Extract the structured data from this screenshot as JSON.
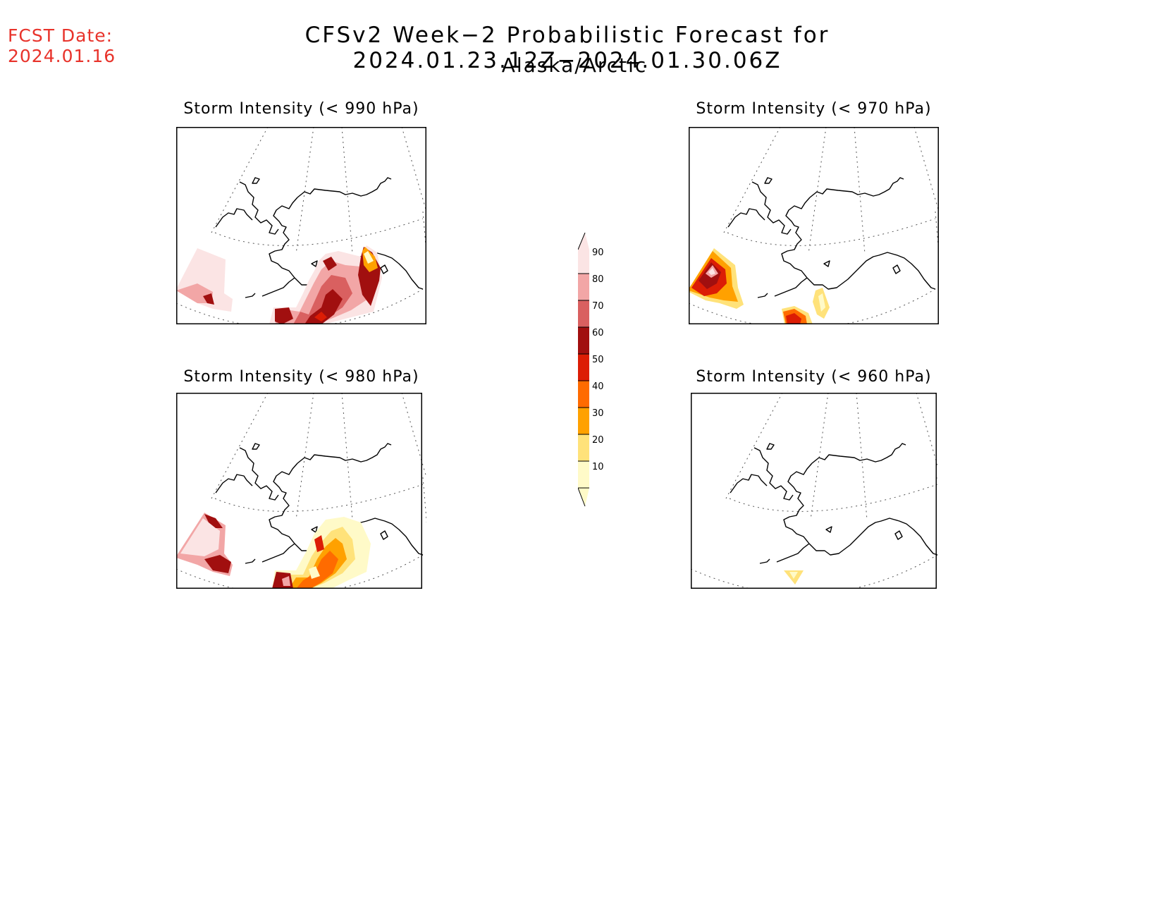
{
  "header": {
    "fcst_label": "FCST Date:",
    "fcst_date": "2024.01.16",
    "title": "CFSv2 Week−2 Probabilistic Forecast for 2024.01.23.12Z−2024.01.30.06Z",
    "region": "Alaska/Arctic"
  },
  "panels": [
    {
      "title": "Storm Intensity (< 990 hPa)"
    },
    {
      "title": "Storm Intensity (< 970 hPa)"
    },
    {
      "title": "Storm Intensity (< 980 hPa)"
    },
    {
      "title": "Storm Intensity (< 960 hPa)"
    }
  ],
  "colorbar": {
    "levels": [
      "90",
      "80",
      "70",
      "60",
      "50",
      "40",
      "30",
      "20",
      "10"
    ],
    "colors": {
      "c90": "#fbe4e4",
      "c80": "#f2a6a6",
      "c70": "#d96060",
      "c60": "#a10f0f",
      "c50": "#dc1d05",
      "c40": "#ff6b00",
      "c30": "#ffa100",
      "c20": "#ffe27a",
      "c10": "#fffac8"
    }
  }
}
